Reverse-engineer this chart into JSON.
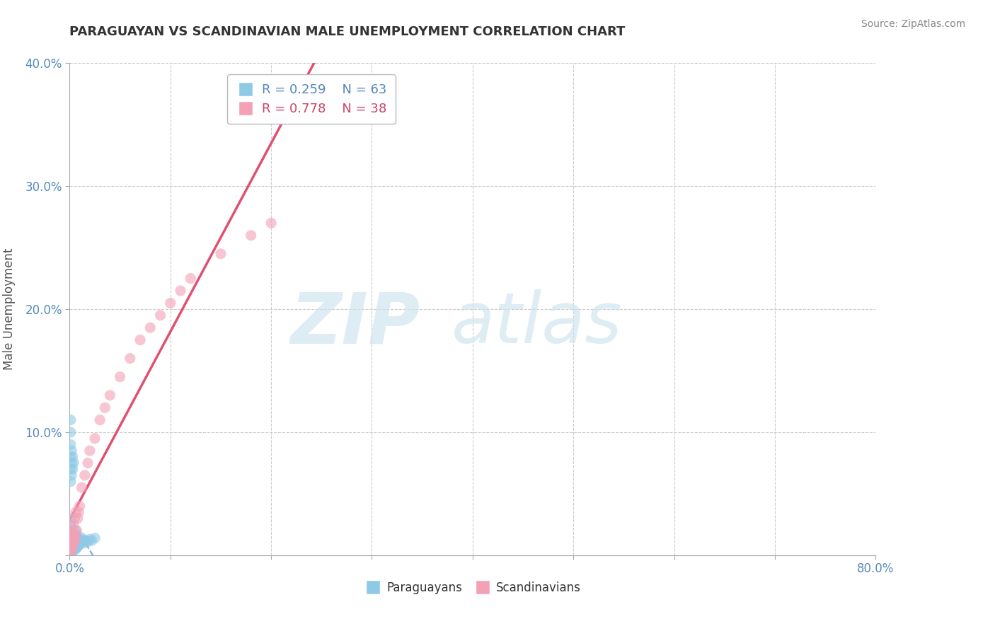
{
  "title": "PARAGUAYAN VS SCANDINAVIAN MALE UNEMPLOYMENT CORRELATION CHART",
  "source": "Source: ZipAtlas.com",
  "ylabel": "Male Unemployment",
  "xlim": [
    0,
    0.8
  ],
  "ylim": [
    0,
    0.4
  ],
  "paraguayan_R": 0.259,
  "paraguayan_N": 63,
  "scandinavian_R": 0.778,
  "scandinavian_N": 38,
  "paraguayan_color": "#8ecae6",
  "scandinavian_color": "#f4a0b5",
  "trendline_blue_color": "#6aafd4",
  "trendline_pink_color": "#e05070",
  "para_x": [
    0.001,
    0.001,
    0.001,
    0.001,
    0.001,
    0.001,
    0.001,
    0.001,
    0.001,
    0.001,
    0.001,
    0.001,
    0.001,
    0.002,
    0.002,
    0.002,
    0.002,
    0.002,
    0.002,
    0.002,
    0.003,
    0.003,
    0.003,
    0.003,
    0.003,
    0.004,
    0.004,
    0.004,
    0.005,
    0.005,
    0.005,
    0.006,
    0.006,
    0.006,
    0.007,
    0.007,
    0.008,
    0.008,
    0.009,
    0.01,
    0.01,
    0.011,
    0.012,
    0.013,
    0.014,
    0.015,
    0.016,
    0.018,
    0.02,
    0.022,
    0.025,
    0.001,
    0.001,
    0.001,
    0.001,
    0.001,
    0.001,
    0.002,
    0.002,
    0.002,
    0.003,
    0.003,
    0.004
  ],
  "para_y": [
    0.002,
    0.003,
    0.004,
    0.005,
    0.006,
    0.007,
    0.008,
    0.01,
    0.012,
    0.015,
    0.02,
    0.025,
    0.03,
    0.002,
    0.003,
    0.005,
    0.007,
    0.01,
    0.015,
    0.02,
    0.003,
    0.005,
    0.008,
    0.012,
    0.018,
    0.004,
    0.008,
    0.013,
    0.005,
    0.009,
    0.015,
    0.005,
    0.01,
    0.02,
    0.006,
    0.012,
    0.007,
    0.014,
    0.008,
    0.009,
    0.015,
    0.01,
    0.011,
    0.012,
    0.013,
    0.01,
    0.012,
    0.011,
    0.013,
    0.012,
    0.014,
    0.06,
    0.07,
    0.08,
    0.09,
    0.1,
    0.11,
    0.065,
    0.075,
    0.085,
    0.07,
    0.08,
    0.075
  ],
  "scan_x": [
    0.001,
    0.001,
    0.001,
    0.001,
    0.002,
    0.002,
    0.002,
    0.003,
    0.003,
    0.004,
    0.004,
    0.005,
    0.005,
    0.006,
    0.006,
    0.007,
    0.008,
    0.009,
    0.01,
    0.012,
    0.015,
    0.018,
    0.02,
    0.025,
    0.03,
    0.035,
    0.04,
    0.05,
    0.06,
    0.07,
    0.08,
    0.09,
    0.1,
    0.11,
    0.12,
    0.15,
    0.18,
    0.2
  ],
  "scan_y": [
    0.003,
    0.005,
    0.01,
    0.015,
    0.005,
    0.012,
    0.02,
    0.008,
    0.018,
    0.01,
    0.025,
    0.012,
    0.03,
    0.015,
    0.035,
    0.02,
    0.03,
    0.035,
    0.04,
    0.055,
    0.065,
    0.075,
    0.085,
    0.095,
    0.11,
    0.12,
    0.13,
    0.145,
    0.16,
    0.175,
    0.185,
    0.195,
    0.205,
    0.215,
    0.225,
    0.245,
    0.26,
    0.27
  ]
}
